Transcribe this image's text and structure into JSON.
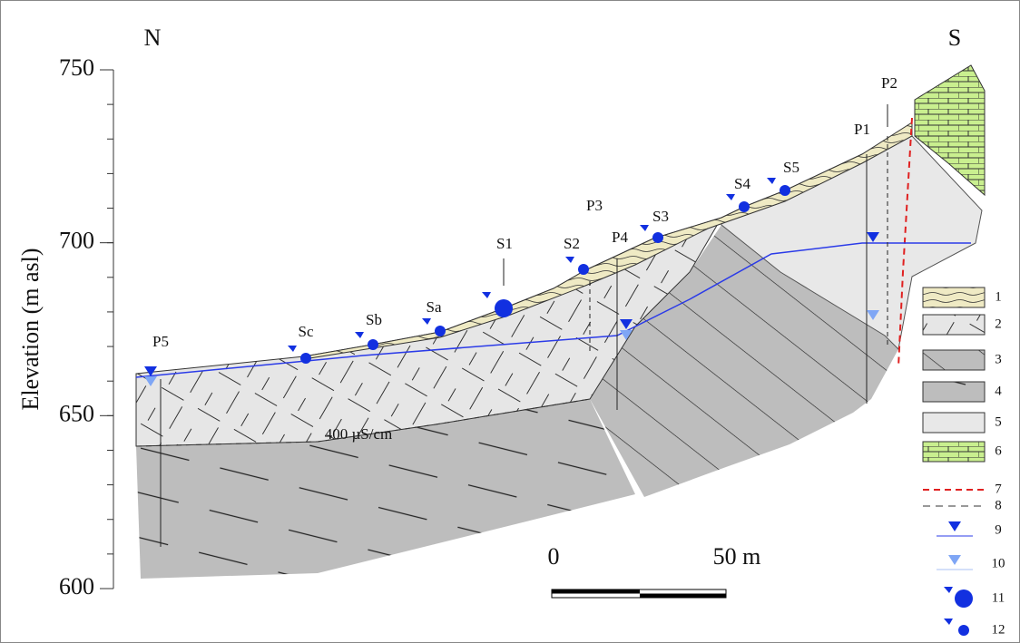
{
  "compass": {
    "north": "N",
    "south": "S"
  },
  "y_axis": {
    "label": "Elevation (m asl)",
    "ticks": [
      750,
      700,
      650,
      600
    ]
  },
  "boreholes": [
    "P5",
    "P4",
    "P3",
    "P1",
    "P2"
  ],
  "springs": [
    "Sc",
    "Sb",
    "Sa",
    "S1",
    "S2",
    "S3",
    "S4",
    "S5"
  ],
  "contour_label": "400 µS/cm",
  "scale_bar": {
    "start": "0",
    "end": "50 m"
  },
  "legend": [
    "1",
    "2",
    "3",
    "4",
    "5",
    "6",
    "7",
    "8",
    "9",
    "10",
    "11",
    "12"
  ]
}
